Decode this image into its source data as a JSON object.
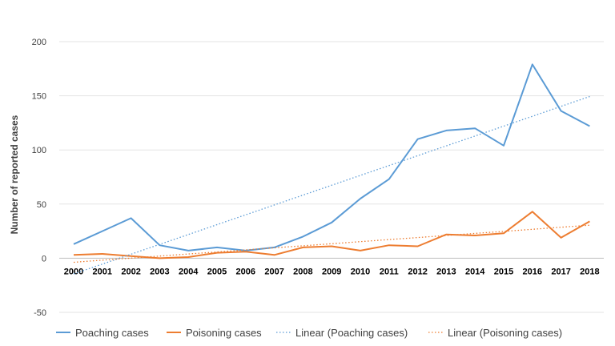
{
  "chart_data": {
    "type": "line",
    "ylabel": "Number of reported cases",
    "xlabel": "",
    "ylim": [
      -50,
      200
    ],
    "yticks": [
      -50,
      0,
      50,
      100,
      150,
      200
    ],
    "grid": "horizontal",
    "legend_position": "bottom",
    "categories": [
      "2000",
      "2001",
      "2002",
      "2003",
      "2004",
      "2005",
      "2006",
      "2007",
      "2008",
      "2009",
      "2010",
      "2011",
      "2012",
      "2013",
      "2014",
      "2015",
      "2016",
      "2017",
      "2018"
    ],
    "series": [
      {
        "name": "Poaching cases",
        "color": "#5B9BD5",
        "style": "solid",
        "values": [
          13,
          25,
          37,
          12,
          7,
          10,
          7,
          10,
          20,
          33,
          55,
          73,
          110,
          118,
          120,
          104,
          179,
          136,
          122
        ]
      },
      {
        "name": "Poisoning cases",
        "color": "#ED7D31",
        "style": "solid",
        "values": [
          3,
          4,
          2,
          0,
          1,
          5,
          6,
          3,
          10,
          11,
          7,
          12,
          11,
          22,
          21,
          23,
          43,
          19,
          34
        ]
      },
      {
        "name": "Linear (Poaching cases)",
        "color": "#5B9BD5",
        "style": "dotted",
        "trend_of": "Poaching cases",
        "values": [
          -14.5,
          -5.4,
          3.7,
          12.8,
          21.9,
          31.0,
          40.1,
          49.2,
          58.3,
          67.4,
          76.5,
          85.6,
          94.7,
          103.8,
          112.9,
          122.0,
          131.1,
          140.2,
          149.3
        ]
      },
      {
        "name": "Linear (Poisoning cases)",
        "color": "#ED7D31",
        "style": "dotted",
        "trend_of": "Poisoning cases",
        "values": [
          -3.8,
          -1.8,
          0.1,
          2.0,
          3.9,
          5.8,
          7.7,
          9.6,
          11.5,
          13.4,
          15.3,
          17.2,
          19.1,
          21.0,
          22.9,
          24.8,
          26.7,
          28.6,
          30.5
        ]
      }
    ]
  }
}
